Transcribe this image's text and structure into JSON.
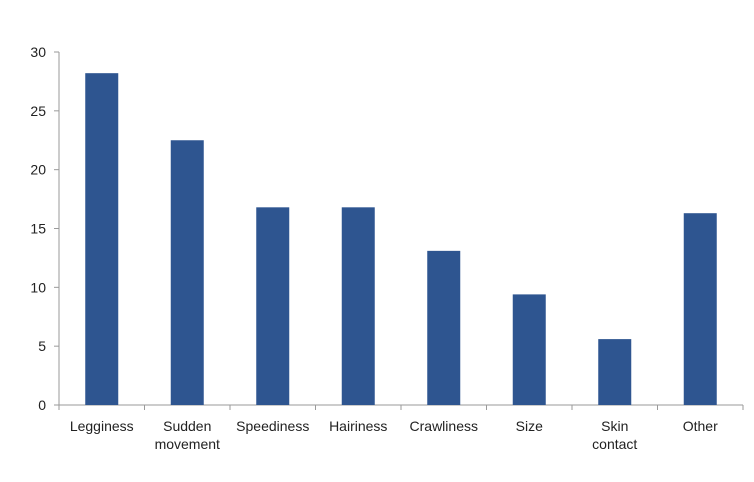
{
  "chart_data": {
    "type": "bar",
    "categories": [
      [
        "Legginess"
      ],
      [
        "Sudden",
        "movement"
      ],
      [
        "Speediness"
      ],
      [
        "Hairiness"
      ],
      [
        "Crawliness"
      ],
      [
        "Size"
      ],
      [
        "Skin",
        "contact"
      ],
      [
        "Other"
      ]
    ],
    "values": [
      28.2,
      22.5,
      16.8,
      16.8,
      13.1,
      9.4,
      5.6,
      16.3
    ],
    "yticks": [
      "0",
      "5",
      "10",
      "15",
      "20",
      "25",
      "30"
    ],
    "ylim": [
      0,
      30
    ],
    "title": "",
    "xlabel": "",
    "ylabel": "",
    "grid": false,
    "legend": "none",
    "bar_color": "#2e5590",
    "axis_color": "#9a9a9a"
  }
}
